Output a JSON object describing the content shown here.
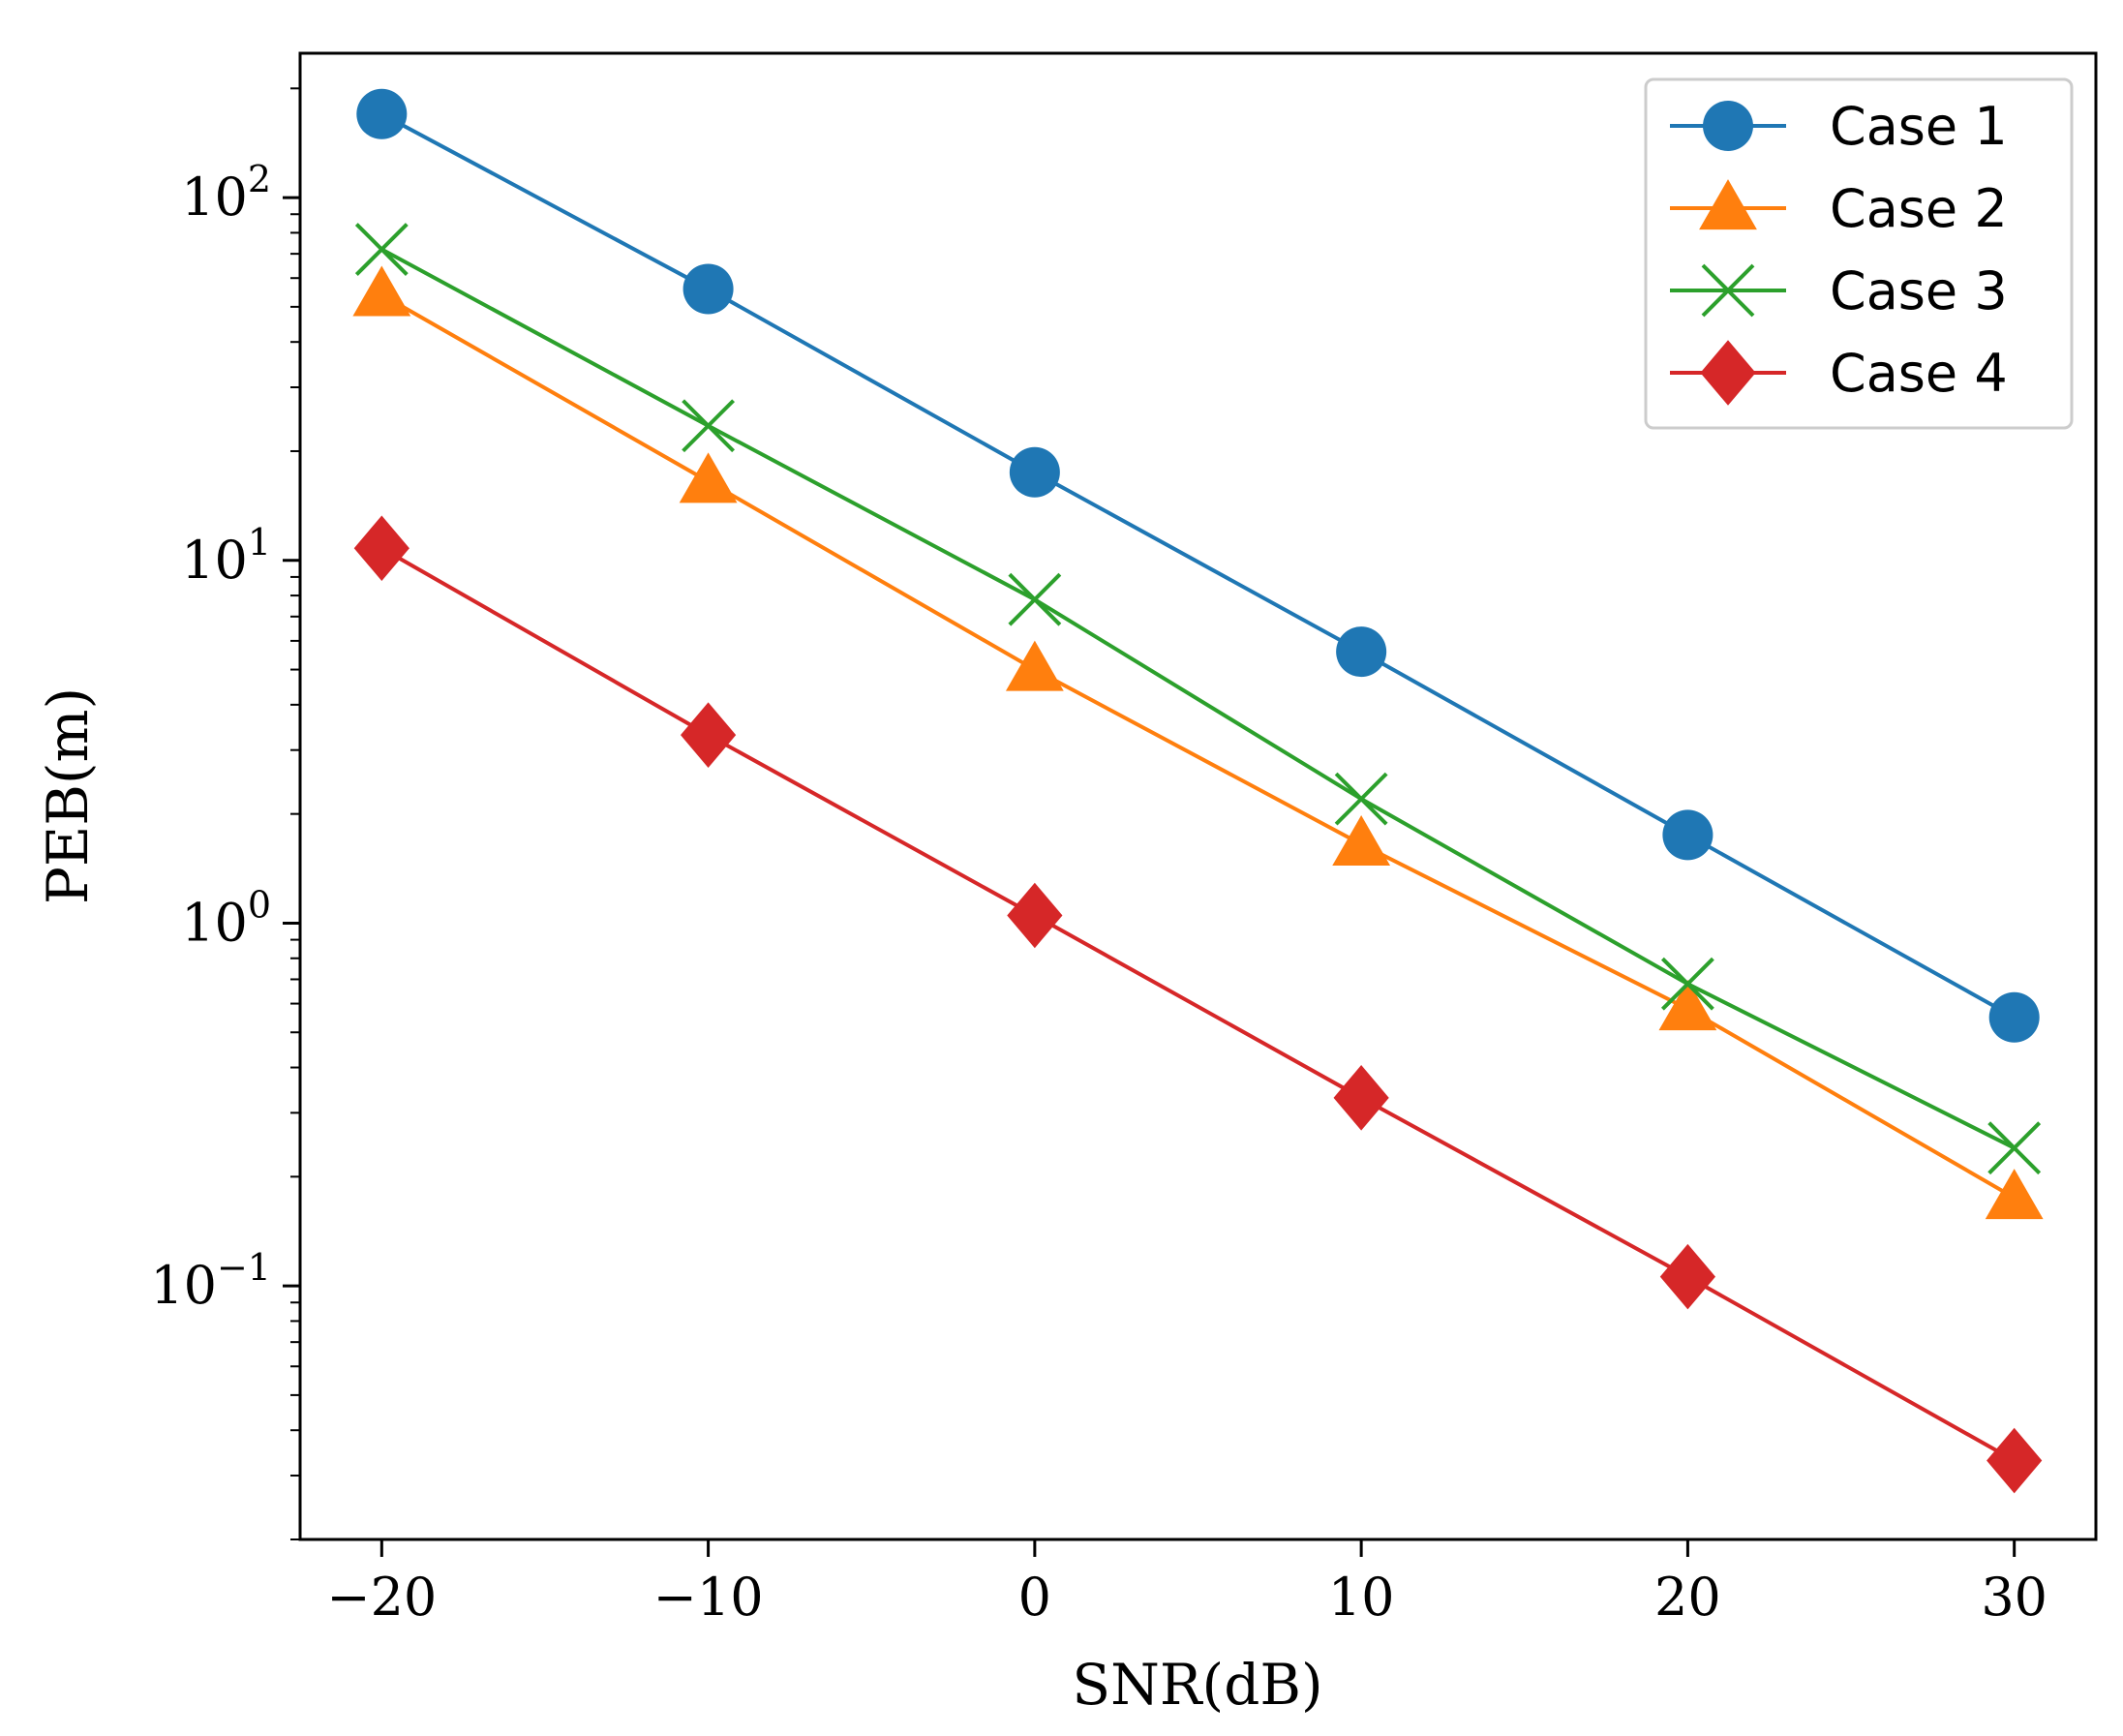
{
  "chart_data": {
    "type": "line",
    "title": "",
    "xlabel": "SNR(dB)",
    "ylabel": "PEB(m)",
    "x": [
      -20,
      -10,
      0,
      10,
      20,
      30
    ],
    "xlim": [
      -22.5,
      32.5
    ],
    "ylim": [
      0.02,
      250
    ],
    "yscale": "log",
    "xticks": [
      -20,
      -10,
      0,
      10,
      20,
      30
    ],
    "xtick_labels": [
      "−20",
      "−10",
      "0",
      "10",
      "20",
      "30"
    ],
    "yticks": [
      {
        "value": 0.1,
        "base": "10",
        "exp": "−1"
      },
      {
        "value": 1,
        "base": "10",
        "exp": "0"
      },
      {
        "value": 10,
        "base": "10",
        "exp": "1"
      },
      {
        "value": 100,
        "base": "10",
        "exp": "2"
      }
    ],
    "grid": false,
    "legend_position": "top-right",
    "series": [
      {
        "name": "Case 1",
        "color": "#1f77b4",
        "marker": "circle",
        "values": [
          170,
          56,
          17.5,
          5.6,
          1.75,
          0.55
        ]
      },
      {
        "name": "Case 2",
        "color": "#ff7f0e",
        "marker": "triangle",
        "values": [
          54,
          16.5,
          5.0,
          1.65,
          0.58,
          0.175
        ]
      },
      {
        "name": "Case 3",
        "color": "#2ca02c",
        "marker": "x",
        "values": [
          72,
          23.5,
          7.8,
          2.2,
          0.68,
          0.24
        ]
      },
      {
        "name": "Case 4",
        "color": "#d62728",
        "marker": "diamond",
        "values": [
          10.8,
          3.3,
          1.05,
          0.33,
          0.106,
          0.033
        ]
      }
    ]
  }
}
